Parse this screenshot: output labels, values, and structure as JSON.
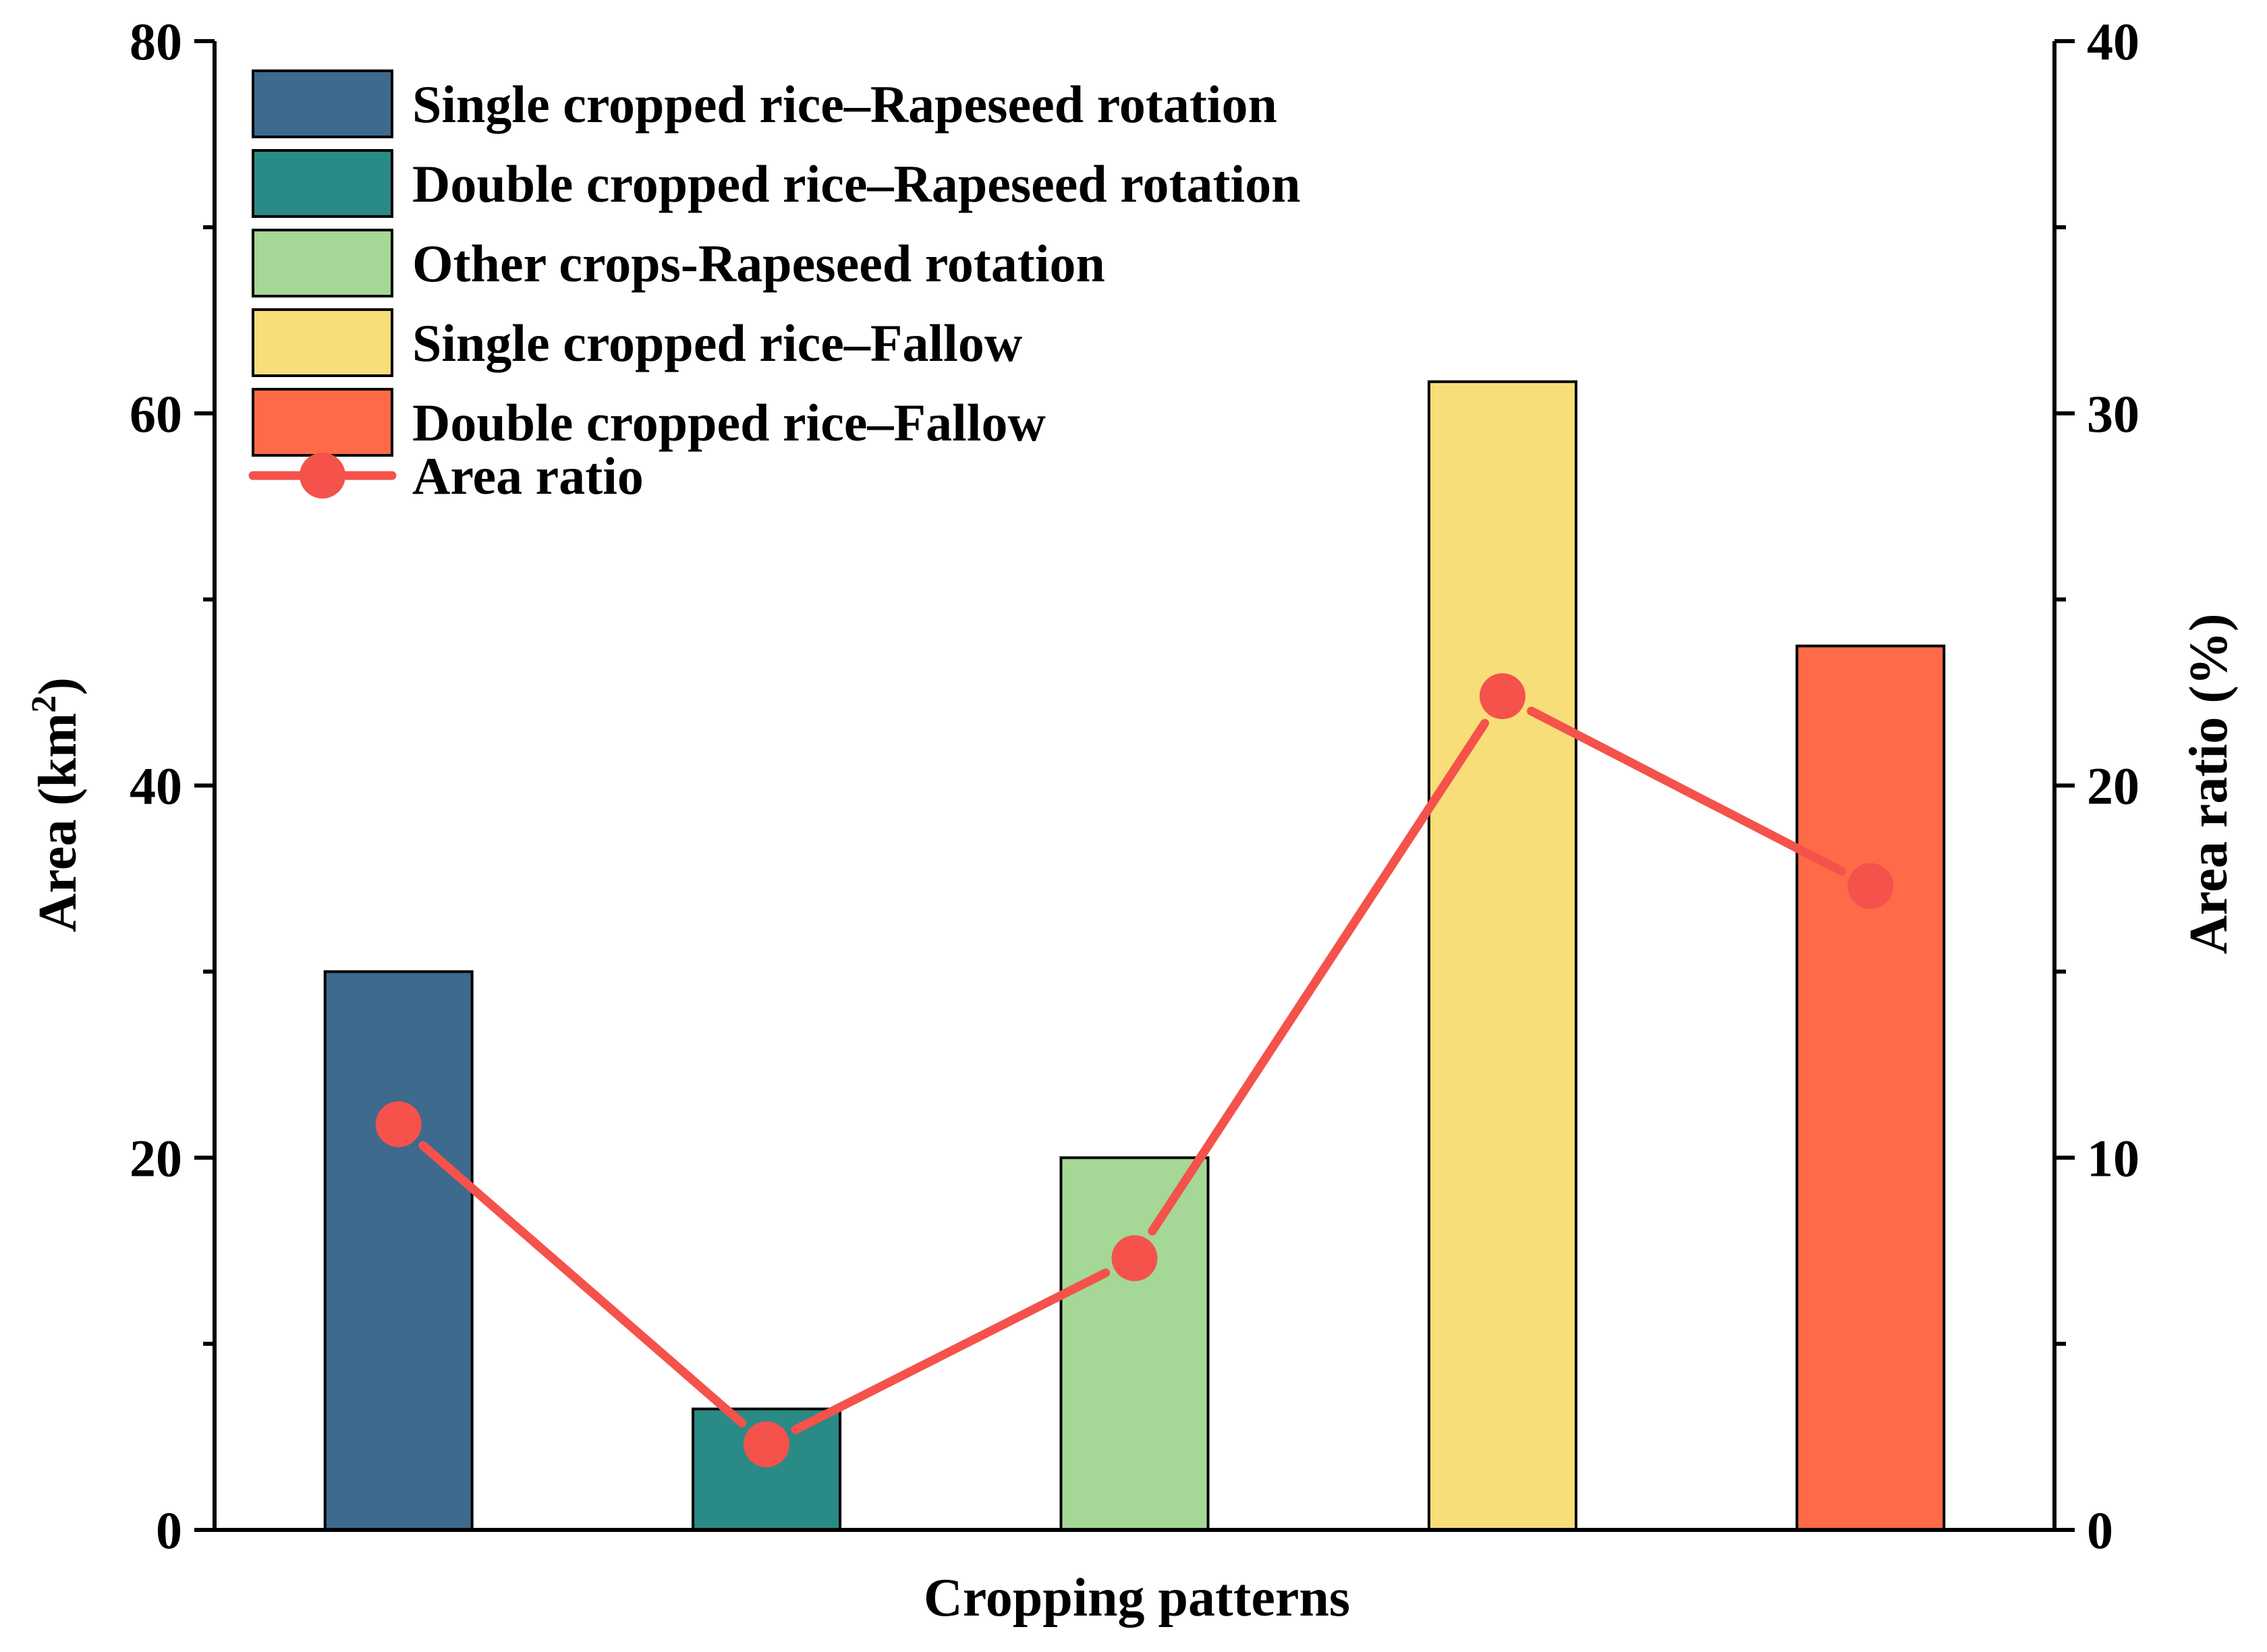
{
  "chart_data": {
    "type": "bar",
    "title": "",
    "xlabel": "Cropping patterns",
    "ylabel": "Area (km",
    "ylabel_sup": "2",
    "ylabel_close": ")",
    "y2label": "Area ratio (%)",
    "ylim": [
      0,
      80
    ],
    "y2lim": [
      0,
      40
    ],
    "yticks": [
      "0",
      "20",
      "40",
      "60",
      "80"
    ],
    "y2ticks": [
      "0",
      "10",
      "20",
      "30",
      "40"
    ],
    "grid": false,
    "legend_position": "top-left",
    "categories": [
      "Single cropped rice–Rapeseed rotation",
      "Double cropped rice–Rapeseed rotation",
      "Other crops-Rapeseed rotation",
      "Single cropped rice–Fallow",
      "Double cropped rice–Fallow"
    ],
    "colors": [
      "#3d6a8d",
      "#2a8a86",
      "#a5d796",
      "#f7de78",
      "#ff6b48"
    ],
    "series": [
      {
        "name": "Area",
        "axis": "left",
        "kind": "bar",
        "values": [
          30.0,
          6.5,
          20.0,
          61.7,
          47.5
        ]
      },
      {
        "name": "Area ratio",
        "axis": "right",
        "kind": "line",
        "color": "#f4524b",
        "values": [
          10.9,
          2.3,
          7.3,
          22.4,
          17.3
        ]
      }
    ]
  }
}
